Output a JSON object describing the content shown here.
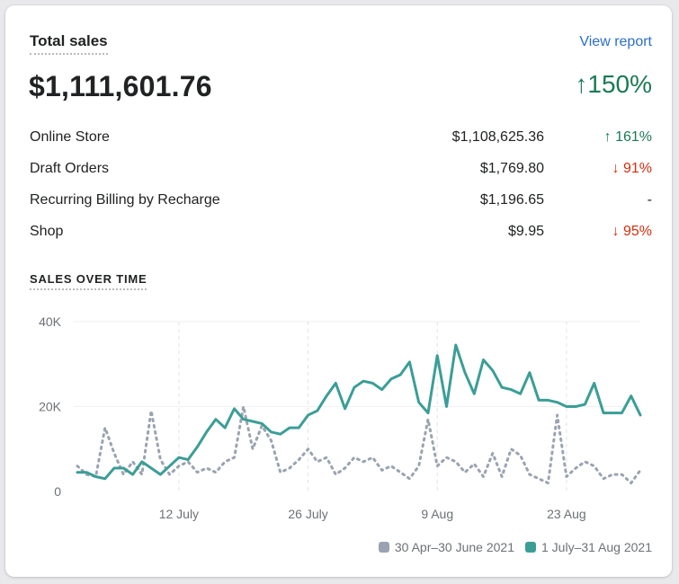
{
  "header": {
    "title": "Total sales",
    "view_report": "View report",
    "total": "$1,111,601.76",
    "growth": "↑150%"
  },
  "breakdown": [
    {
      "name": "Online Store",
      "amount": "$1,108,625.36",
      "change": "↑ 161%",
      "trend": "up"
    },
    {
      "name": "Draft Orders",
      "amount": "$1,769.80",
      "change": "↓ 91%",
      "trend": "down"
    },
    {
      "name": "Recurring Billing by Recharge",
      "amount": "$1,196.65",
      "change": "-",
      "trend": "neutral"
    },
    {
      "name": "Shop",
      "amount": "$9.95",
      "change": "↓ 95%",
      "trend": "down"
    }
  ],
  "section_title": "SALES OVER TIME",
  "colors": {
    "current": "#3b9e96",
    "previous": "#9aa3b0",
    "up": "#1b7a55",
    "down": "#d72c0d",
    "link": "#2c6ecb"
  },
  "chart_data": {
    "type": "line",
    "ylim": [
      0,
      40000
    ],
    "y_ticks": [
      0,
      20000,
      40000
    ],
    "y_tick_labels": [
      "0",
      "20K",
      "40K"
    ],
    "x_ticks": [
      {
        "index": 11,
        "label": "12 July"
      },
      {
        "index": 25,
        "label": "26 July"
      },
      {
        "index": 39,
        "label": "9 Aug"
      },
      {
        "index": 53,
        "label": "23 Aug"
      }
    ],
    "series": [
      {
        "name": "30 Apr–30 June 2021",
        "style": "dotted",
        "values": [
          6000,
          4000,
          3500,
          15000,
          9000,
          4000,
          7000,
          4000,
          19000,
          7500,
          4000,
          6000,
          7000,
          4500,
          5500,
          4500,
          7000,
          8000,
          20000,
          10000,
          15500,
          12000,
          4500,
          5500,
          7500,
          10000,
          7000,
          8000,
          4000,
          5500,
          8000,
          7000,
          8000,
          5000,
          6000,
          4500,
          3000,
          6000,
          17000,
          6000,
          8000,
          7000,
          4500,
          6500,
          3500,
          9000,
          3500,
          10000,
          8500,
          4000,
          3000,
          2000,
          18000,
          3500,
          5500,
          7000,
          6000,
          3000,
          4000,
          4000,
          2000,
          5000
        ]
      },
      {
        "name": "1 July–31 Aug 2021",
        "style": "solid",
        "values": [
          4500,
          4500,
          3500,
          3000,
          5500,
          5500,
          4000,
          7000,
          5500,
          4000,
          6000,
          8000,
          7500,
          10500,
          14000,
          17000,
          15000,
          19500,
          17000,
          16500,
          16000,
          14000,
          13500,
          15000,
          15000,
          18000,
          19000,
          22500,
          25500,
          19500,
          24500,
          26000,
          25500,
          24000,
          26500,
          27500,
          30500,
          21000,
          18500,
          32000,
          20000,
          34500,
          28000,
          23000,
          31000,
          28500,
          24500,
          24000,
          23000,
          28000,
          21500,
          21500,
          21000,
          20000,
          20000,
          20500,
          25500,
          18500,
          18500,
          18500,
          22500,
          18000
        ]
      }
    ]
  }
}
